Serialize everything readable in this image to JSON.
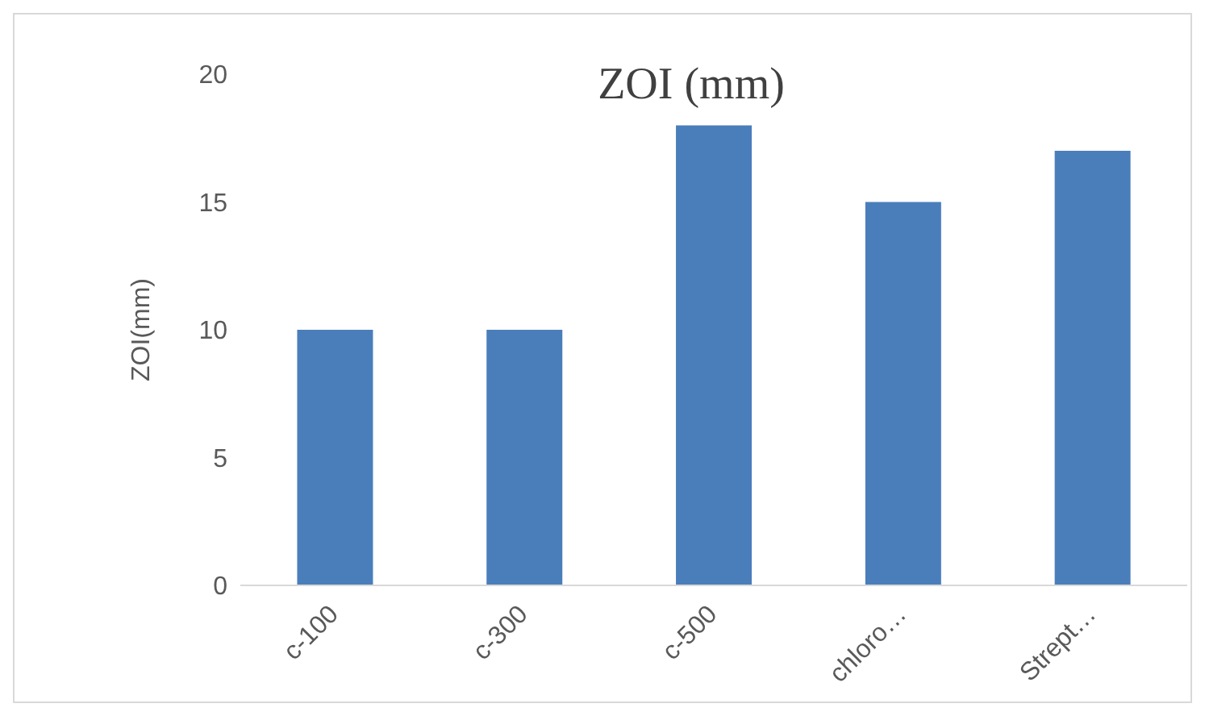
{
  "chart_data": {
    "type": "bar",
    "title": "ZOI (mm)",
    "ylabel": "ZOI(mm)",
    "categories": [
      "c-100",
      "c-300",
      "c-500",
      "chloro…",
      "Strept…"
    ],
    "values": [
      10,
      10,
      18,
      15,
      17
    ],
    "color": "#4a7ebb",
    "ylim": [
      0,
      20
    ],
    "yticks": [
      0,
      5,
      10,
      15,
      20
    ]
  }
}
